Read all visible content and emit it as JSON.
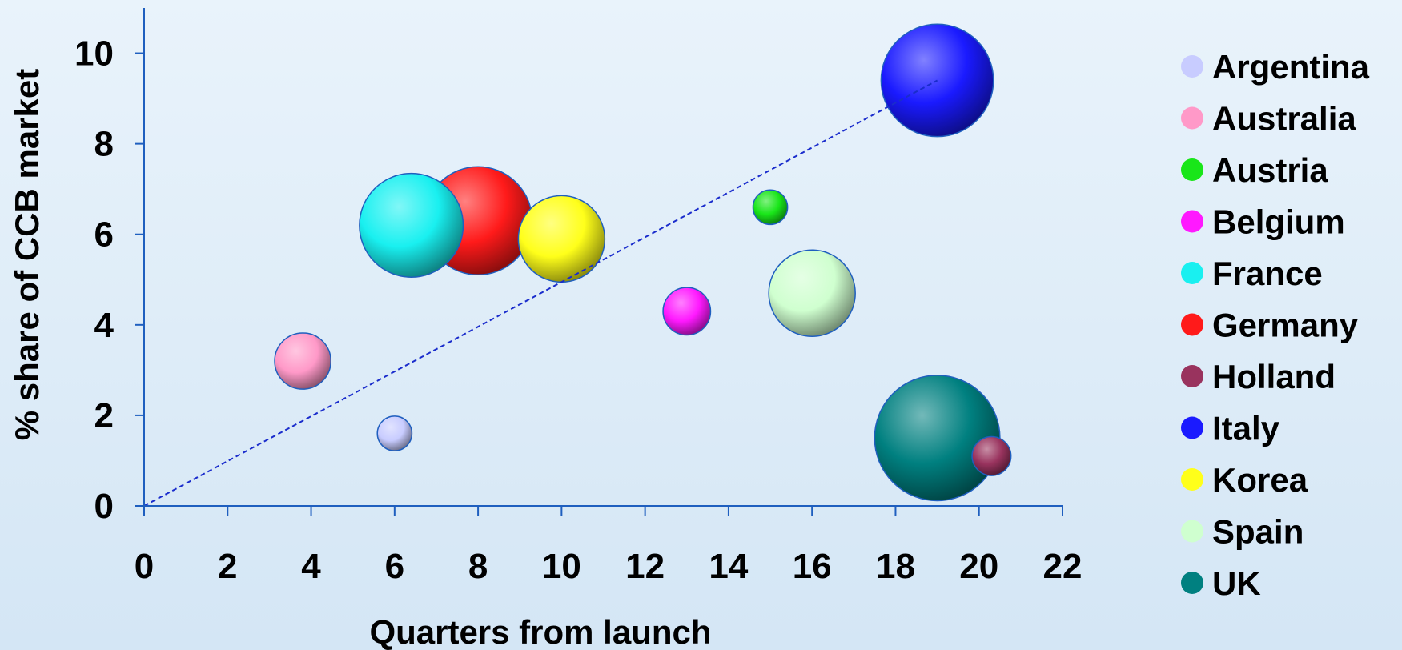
{
  "chart_data": {
    "type": "bubble",
    "title": "",
    "xlabel": "Quarters from launch",
    "ylabel": "% share of CCB market",
    "xlim": [
      0,
      22
    ],
    "ylim": [
      0,
      11
    ],
    "xticks": [
      0,
      2,
      4,
      6,
      8,
      10,
      12,
      14,
      16,
      18,
      20,
      22
    ],
    "yticks": [
      0,
      2,
      4,
      6,
      8,
      10
    ],
    "grid": false,
    "legend_position": "right",
    "trendline": {
      "x": [
        0,
        19
      ],
      "y": [
        0,
        9.4
      ],
      "style": "dashed",
      "color": "#1a2ccc"
    },
    "series": [
      {
        "name": "Argentina",
        "x": 6,
        "y": 1.6,
        "size": 4,
        "color": "#c8ccff"
      },
      {
        "name": "Australia",
        "x": 3.8,
        "y": 3.2,
        "size": 6.5,
        "color": "#ff99c8"
      },
      {
        "name": "Austria",
        "x": 15,
        "y": 6.6,
        "size": 4,
        "color": "#19e619"
      },
      {
        "name": "Belgium",
        "x": 13,
        "y": 4.3,
        "size": 5.5,
        "color": "#ff19ff"
      },
      {
        "name": "France",
        "x": 6.4,
        "y": 6.2,
        "size": 12,
        "color": "#19f0f0"
      },
      {
        "name": "Germany",
        "x": 8,
        "y": 6.3,
        "size": 12.5,
        "color": "#ff1a1a"
      },
      {
        "name": "Holland",
        "x": 20.3,
        "y": 1.1,
        "size": 4.5,
        "color": "#99335e"
      },
      {
        "name": "Italy",
        "x": 19,
        "y": 9.4,
        "size": 13,
        "color": "#1a1aff"
      },
      {
        "name": "Korea",
        "x": 10,
        "y": 5.9,
        "size": 10,
        "color": "#ffff1a"
      },
      {
        "name": "Spain",
        "x": 16,
        "y": 4.7,
        "size": 10,
        "color": "#cfffcf"
      },
      {
        "name": "UK",
        "x": 19,
        "y": 1.5,
        "size": 14.5,
        "color": "#008080"
      }
    ]
  }
}
